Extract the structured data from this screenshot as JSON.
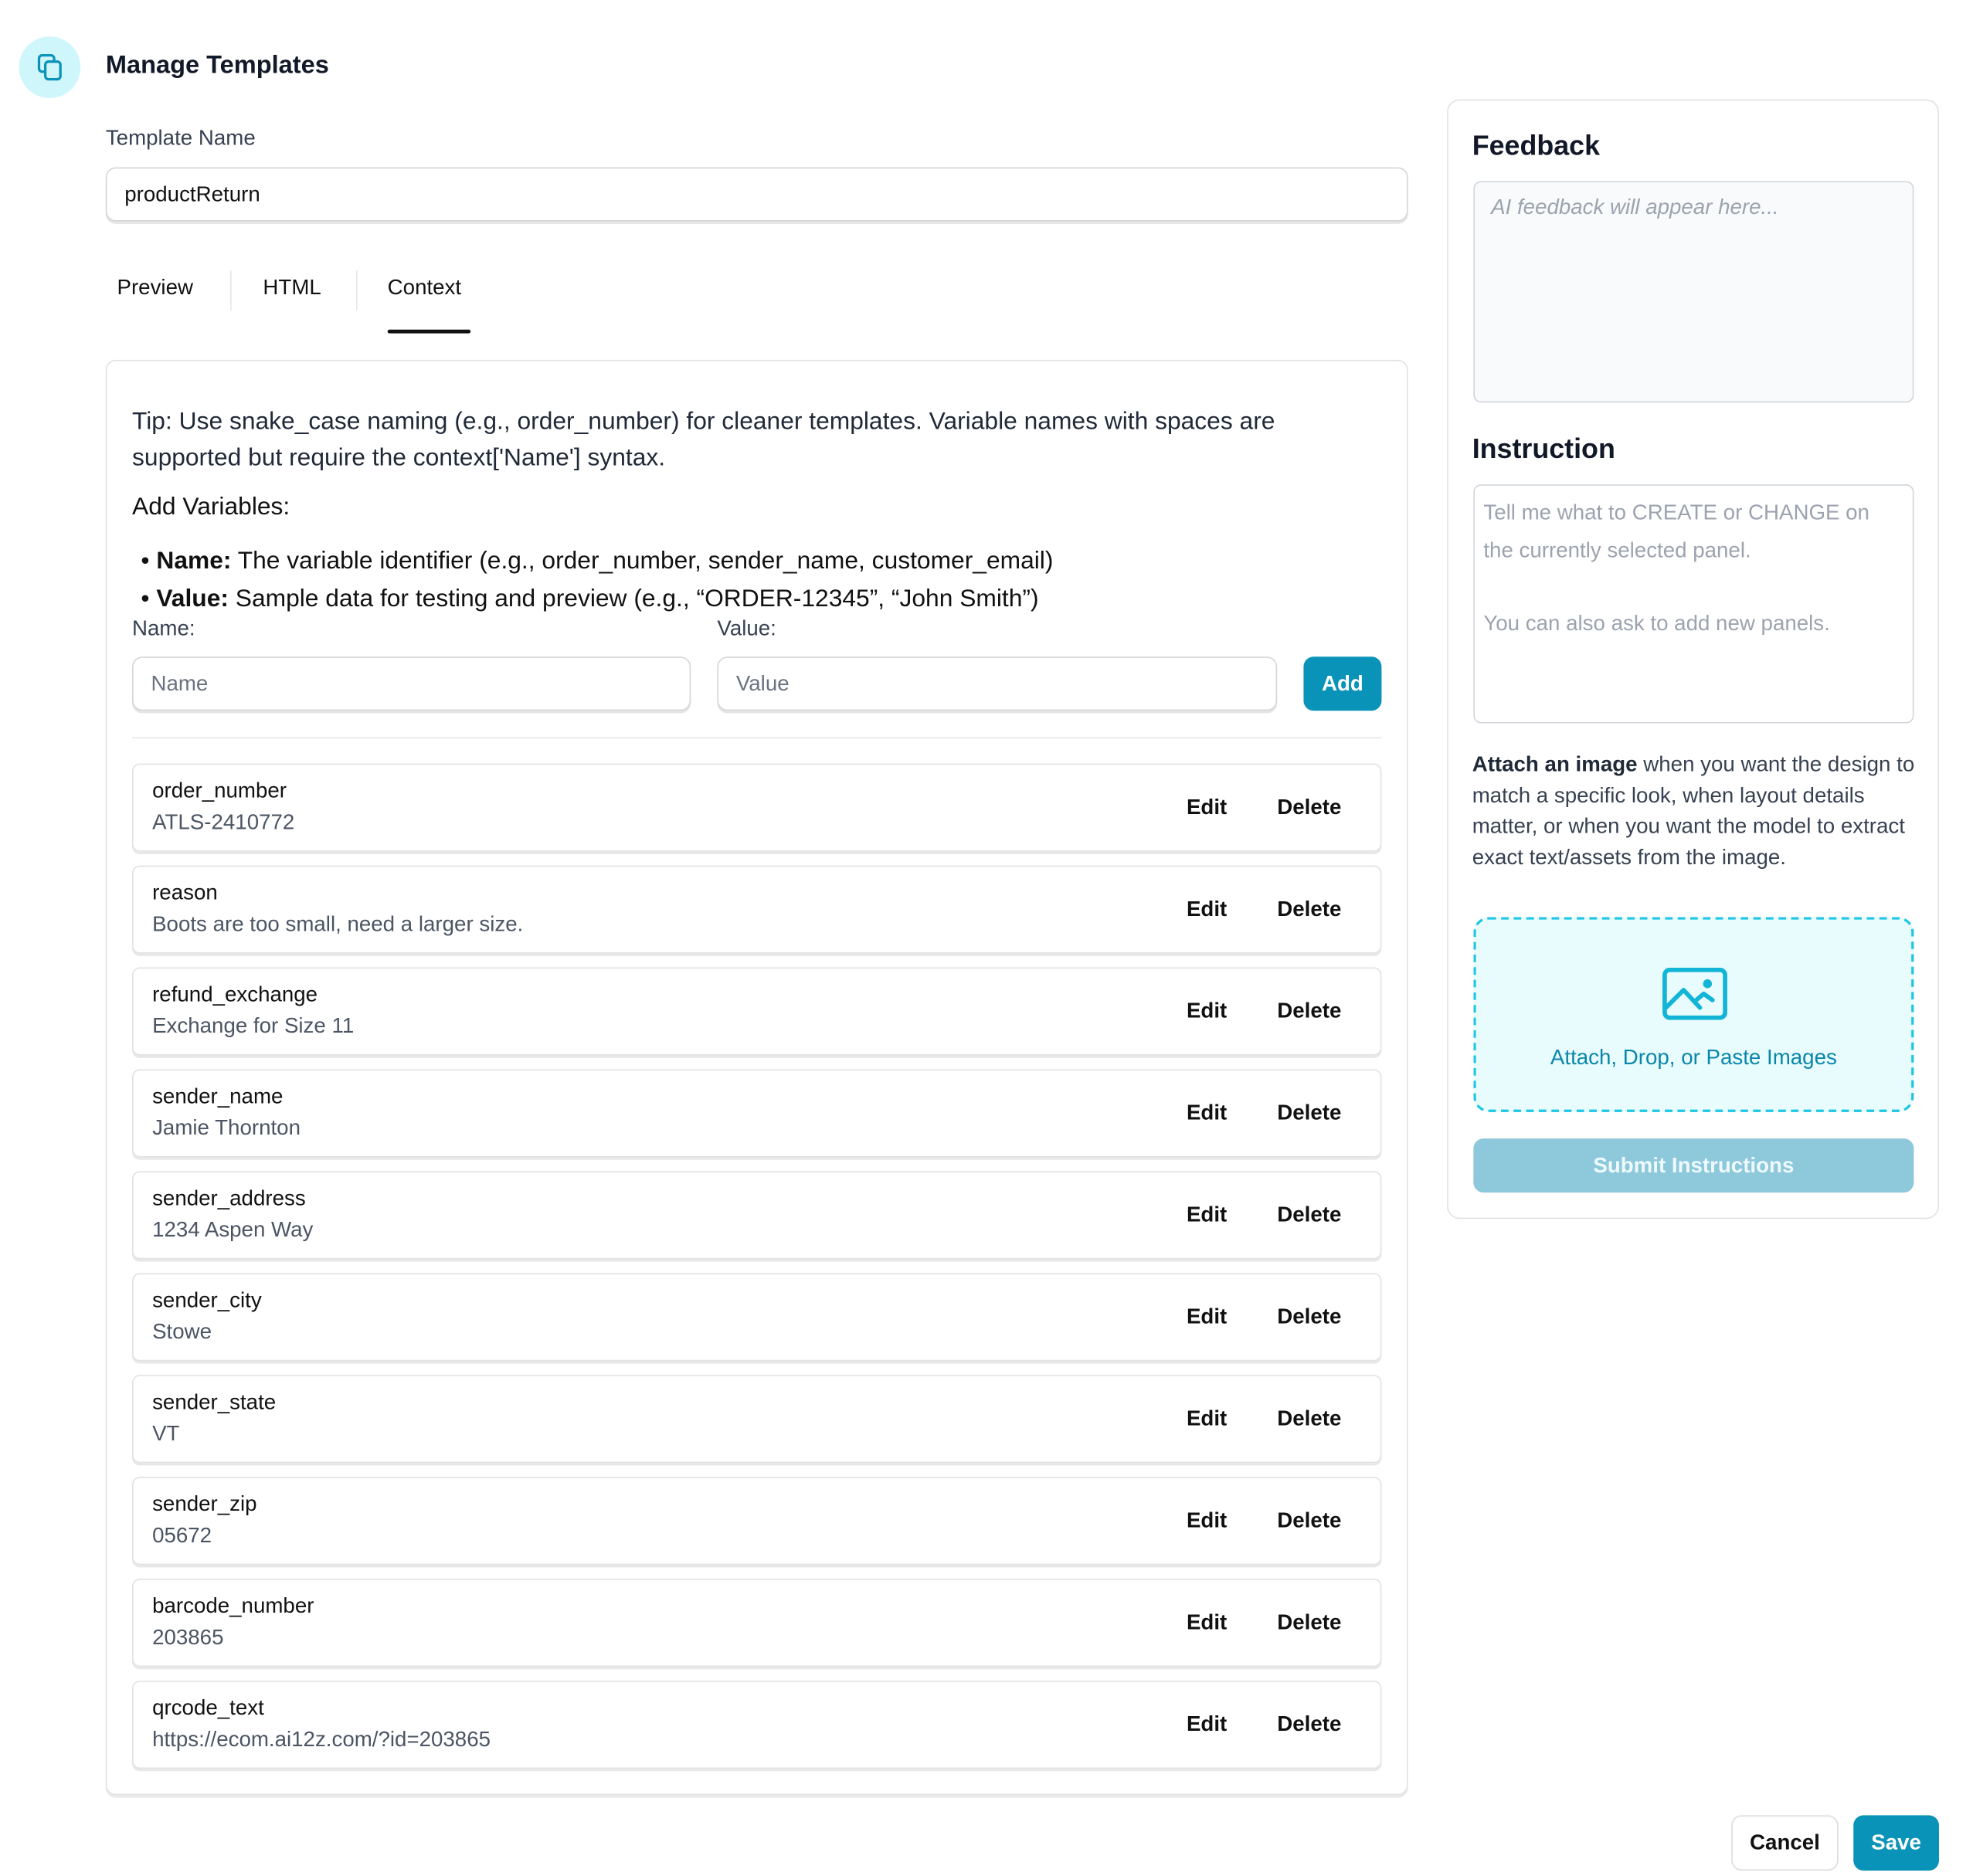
{
  "header": {
    "title": "Manage Templates",
    "icon": "copy-icon"
  },
  "template_name": {
    "label": "Template Name",
    "value": "productReturn"
  },
  "tabs": [
    {
      "label": "Preview"
    },
    {
      "label": "HTML"
    },
    {
      "label": "Context",
      "active": true
    }
  ],
  "context": {
    "tip_label": "Tip:",
    "tip_text": " Use snake_case naming (e.g., order_number) for cleaner templates. Variable names with spaces are supported but require the context['Name'] syntax.",
    "add_variables": "Add Variables:",
    "bullets": [
      {
        "term": "Name:",
        "text": " The variable identifier (e.g., order_number, sender_name, customer_email)"
      },
      {
        "term": "Value:",
        "text": " Sample data for testing and preview (e.g., “ORDER-12345”, “John Smith”)"
      }
    ],
    "name_label": "Name:",
    "name_placeholder": "Name",
    "value_label": "Value:",
    "value_placeholder": "Value",
    "add_button": "Add",
    "edit_label": "Edit",
    "delete_label": "Delete",
    "variables": [
      {
        "name": "order_number",
        "value": "ATLS-2410772"
      },
      {
        "name": "reason",
        "value": "Boots are too small, need a larger size."
      },
      {
        "name": "refund_exchange",
        "value": "Exchange for Size 11"
      },
      {
        "name": "sender_name",
        "value": "Jamie Thornton"
      },
      {
        "name": "sender_address",
        "value": "1234 Aspen Way"
      },
      {
        "name": "sender_city",
        "value": "Stowe"
      },
      {
        "name": "sender_state",
        "value": "VT"
      },
      {
        "name": "sender_zip",
        "value": "05672"
      },
      {
        "name": "barcode_number",
        "value": "203865"
      },
      {
        "name": "qrcode_text",
        "value": "https://ecom.ai12z.com/?id=203865"
      }
    ]
  },
  "sidebar": {
    "feedback_title": "Feedback",
    "feedback_placeholder": "AI feedback will appear here...",
    "instruction_title": "Instruction",
    "instruction_placeholder_1": "Tell me what to CREATE or CHANGE on the currently selected panel.",
    "instruction_placeholder_2": "You can also ask to add new panels.",
    "attach_bold": "Attach an image",
    "attach_text": " when you want the design to match a specific look, when layout details matter, or when you want the model to extract exact text/assets from the image.",
    "dropzone_label": "Attach, Drop, or Paste Images",
    "submit_button": "Submit Instructions"
  },
  "footer": {
    "cancel": "Cancel",
    "save": "Save"
  },
  "colors": {
    "accent": "#0a93b8",
    "submit_disabled": "#8ec8db",
    "dropzone_border": "#1cc6e4",
    "dropzone_bg": "#e8fcfe"
  }
}
